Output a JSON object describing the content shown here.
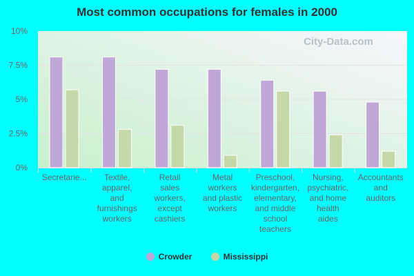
{
  "chart_data": {
    "type": "bar",
    "title": "Most common occupations for females in 2000",
    "categories": [
      "Secretarie...",
      "Textile, apparel, and furnishings workers",
      "Retail sales workers, except cashiers",
      "Metal workers and plastic workers",
      "Preschool, kindergarten, elementary, and middle school teachers",
      "Nursing, psychiatric, and home health aides",
      "Accountants and auditors"
    ],
    "category_lines": [
      [
        "Secretarie..."
      ],
      [
        "Textile,",
        "apparel,",
        "and",
        "furnishings",
        "workers"
      ],
      [
        "Retail",
        "sales",
        "workers,",
        "except",
        "cashiers"
      ],
      [
        "Metal",
        "workers",
        "and plastic",
        "workers"
      ],
      [
        "Preschool,",
        "kindergarten,",
        "elementary,",
        "and middle",
        "school",
        "teachers"
      ],
      [
        "Nursing,",
        "psychiatric,",
        "and home",
        "health",
        "aides"
      ],
      [
        "Accountants",
        "and",
        "auditors"
      ]
    ],
    "series": [
      {
        "name": "Crowder",
        "color": "#bfa8d8",
        "values": [
          8.1,
          8.1,
          7.2,
          7.2,
          6.4,
          5.6,
          4.8
        ]
      },
      {
        "name": "Mississippi",
        "color": "#c4d8a8",
        "values": [
          5.7,
          2.8,
          3.1,
          0.9,
          5.6,
          2.4,
          1.2
        ]
      }
    ],
    "ylim": [
      0,
      10
    ],
    "yticks": [
      "0%",
      "2.5%",
      "5%",
      "7.5%",
      "10%"
    ],
    "ytick_values": [
      0,
      2.5,
      5,
      7.5,
      10
    ],
    "grid": true,
    "legend": "bottom"
  },
  "watermark": "City-Data.com"
}
